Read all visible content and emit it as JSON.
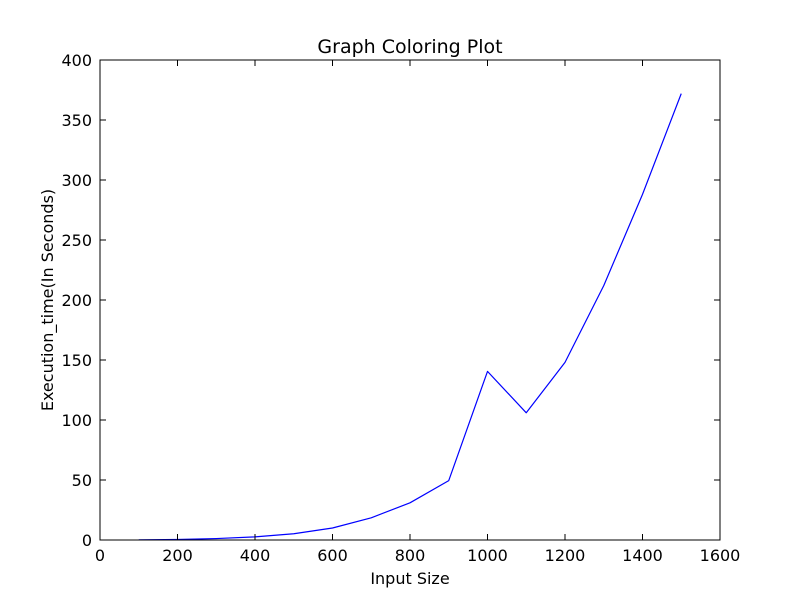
{
  "chart_data": {
    "type": "line",
    "title": "Graph Coloring Plot",
    "xlabel": "Input Size",
    "ylabel": "Execution_time(In Seconds)",
    "xlim": [
      0,
      1600
    ],
    "ylim": [
      0,
      400
    ],
    "xticks": [
      0,
      200,
      400,
      600,
      800,
      1000,
      1200,
      1400,
      1600
    ],
    "yticks": [
      0,
      50,
      100,
      150,
      200,
      250,
      300,
      350,
      400
    ],
    "xtick_labels": [
      "0",
      "200",
      "400",
      "600",
      "800",
      "1000",
      "1200",
      "1400",
      "1600"
    ],
    "ytick_labels": [
      "0",
      "50",
      "100",
      "150",
      "200",
      "250",
      "300",
      "350",
      "400"
    ],
    "grid": false,
    "series": [
      {
        "color": "#0000ff",
        "x": [
          100,
          200,
          300,
          400,
          500,
          600,
          700,
          800,
          900,
          1000,
          1100,
          1200,
          1300,
          1400,
          1500
        ],
        "y": [
          0.1,
          0.4,
          1.2,
          2.6,
          5.2,
          10.0,
          18.5,
          31.0,
          49.5,
          140.5,
          106.0,
          148.0,
          212.0,
          288.0,
          372.0
        ]
      }
    ]
  }
}
